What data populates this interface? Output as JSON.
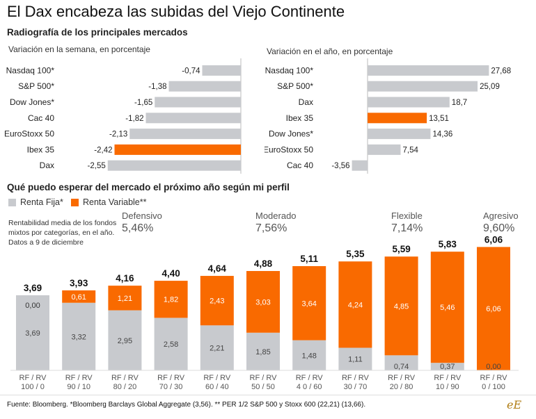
{
  "title": "El Dax encabeza las subidas del Viejo Continente",
  "subtitle": "Radiografía de los principales mercados",
  "section_title": "Qué puedo esperar del mercado el próximo año según mi perfil",
  "legend": {
    "fija": "Renta Fija*",
    "variable": "Renta Variable**"
  },
  "note": "Rentabilidad media de los fondos mixtos por categorías, en el año. Datos a 9 de diciembre",
  "profiles": [
    {
      "name": "Defensivo",
      "value": "5,46%"
    },
    {
      "name": "Moderado",
      "value": "7,56%"
    },
    {
      "name": "Flexible",
      "value": "7,14%"
    },
    {
      "name": "Agresivo",
      "value": "9,60%"
    }
  ],
  "footer": "Fuente: Bloomberg. *Bloomberg Barclays Global Aggregate (3,56). ** PER 1/2 S&P 500 y Stoxx 600 (22,21) (13,66).",
  "logo": "eE",
  "colors": {
    "gray": "#c8cace",
    "orange": "#f96a00",
    "axis": "#bbbbbb"
  },
  "chart_data": [
    {
      "type": "bar",
      "orientation": "horizontal",
      "title": "Variación en la semana, en porcentaje",
      "categories": [
        "Nasdaq 100*",
        "S&P 500*",
        "Dow Jones*",
        "Cac 40",
        "EuroStoxx 50",
        "Ibex 35",
        "Dax"
      ],
      "values": [
        -0.74,
        -1.38,
        -1.65,
        -1.82,
        -2.13,
        -2.42,
        -2.55
      ],
      "value_labels": [
        "-0,74",
        "-1,38",
        "-1,65",
        "-1,82",
        "-2,13",
        "-2,42",
        "-2,55"
      ],
      "highlight": "Ibex 35"
    },
    {
      "type": "bar",
      "orientation": "horizontal",
      "title": "Variación en el año, en porcentaje",
      "categories": [
        "Nasdaq 100*",
        "S&P 500*",
        "Dax",
        "Ibex 35",
        "Dow Jones*",
        "EuroStoxx 50",
        "Cac 40"
      ],
      "values": [
        27.68,
        25.09,
        18.7,
        13.51,
        14.36,
        7.54,
        -3.56
      ],
      "value_labels": [
        "27,68",
        "25,09",
        "18,7",
        "13,51",
        "14,36",
        "7,54",
        "-3,56"
      ],
      "highlight": "Ibex 35"
    },
    {
      "type": "bar",
      "stacked": true,
      "categories": [
        "RF / RV\n100 / 0",
        "RF / RV\n90 / 10",
        "RF / RV\n80 / 20",
        "RF / RV\n70 / 30",
        "RF / RV\n60 / 40",
        "RF / RV\n50 / 50",
        "RF / RV\n4 0 / 60",
        "RF / RV\n30 / 70",
        "RF / RV\n20 / 80",
        "RF / RV\n10 / 90",
        "RF / RV\n0 / 100"
      ],
      "series": [
        {
          "name": "Renta Fija*",
          "values": [
            3.69,
            3.32,
            2.95,
            2.58,
            2.21,
            1.85,
            1.48,
            1.11,
            0.74,
            0.37,
            0.0
          ],
          "labels": [
            "3,69",
            "3,32",
            "2,95",
            "2,58",
            "2,21",
            "1,85",
            "1,48",
            "1,11",
            "0,74",
            "0,37",
            "0,00"
          ]
        },
        {
          "name": "Renta Variable**",
          "values": [
            0.0,
            0.61,
            1.21,
            1.82,
            2.43,
            3.03,
            3.64,
            4.24,
            4.85,
            5.46,
            6.06
          ],
          "labels": [
            "0,00",
            "0,61",
            "1,21",
            "1,82",
            "2,43",
            "3,03",
            "3,64",
            "4,24",
            "4,85",
            "5,46",
            "6,06"
          ]
        }
      ],
      "totals": [
        "3,69",
        "3,93",
        "4,16",
        "4,40",
        "4,64",
        "4,88",
        "5,11",
        "5,35",
        "5,59",
        "5,83",
        "6,06"
      ]
    }
  ]
}
